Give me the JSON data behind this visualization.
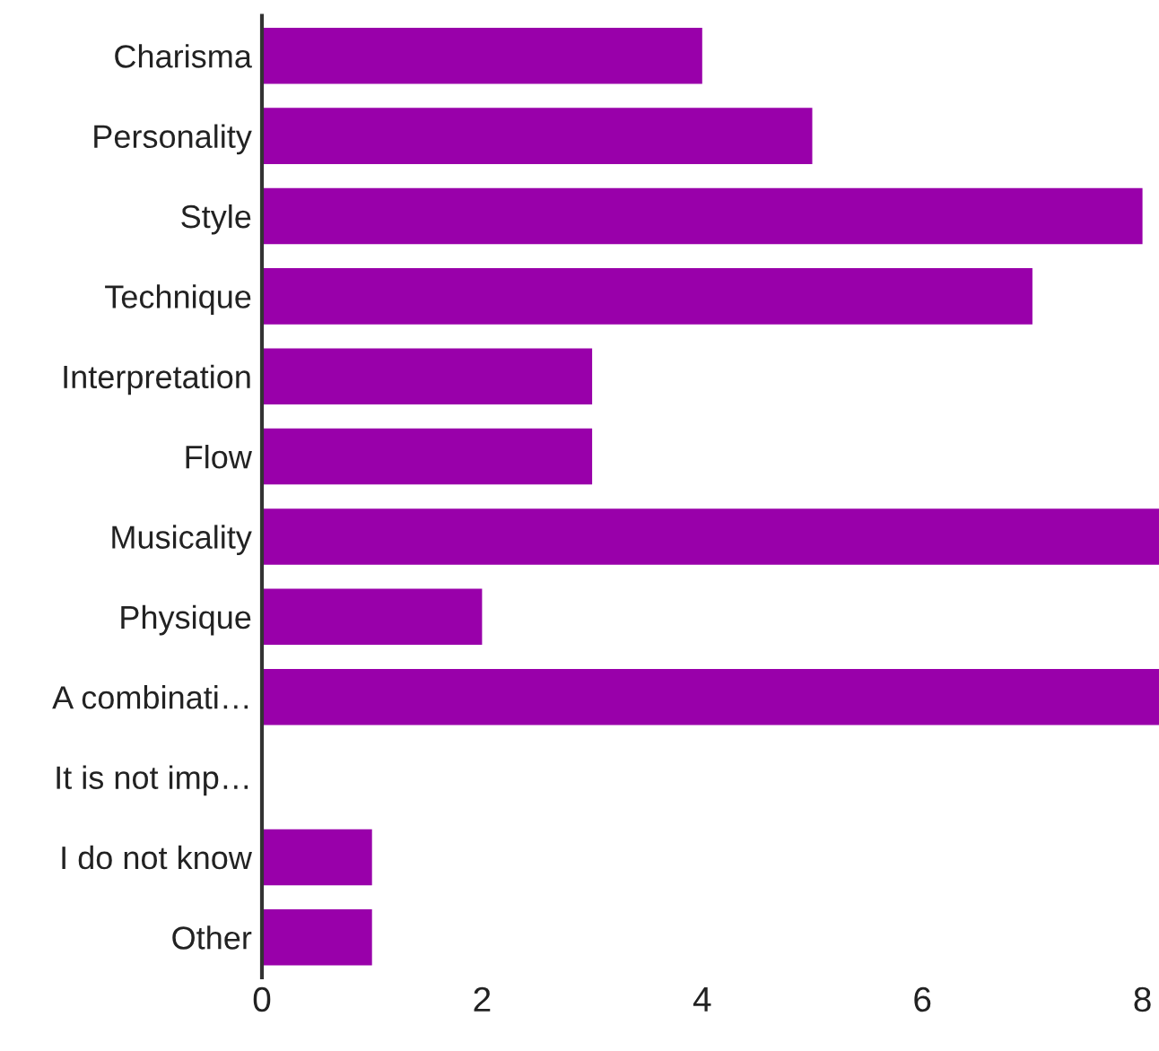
{
  "chart_data": {
    "type": "bar",
    "orientation": "horizontal",
    "categories": [
      "Charisma",
      "Personality",
      "Style",
      "Technique",
      "Interpretation",
      "Flow",
      "Musicality",
      "Physique",
      "A combinati…",
      "It is not imp…",
      "I do not know",
      "Other"
    ],
    "values": [
      4,
      5,
      8,
      7,
      3,
      3,
      8.15,
      2,
      8.15,
      0,
      1,
      1
    ],
    "color": "#9900aa",
    "xlim": [
      0,
      8.15
    ],
    "xticks": [
      0,
      2,
      4,
      6,
      8
    ],
    "grid": false
  }
}
